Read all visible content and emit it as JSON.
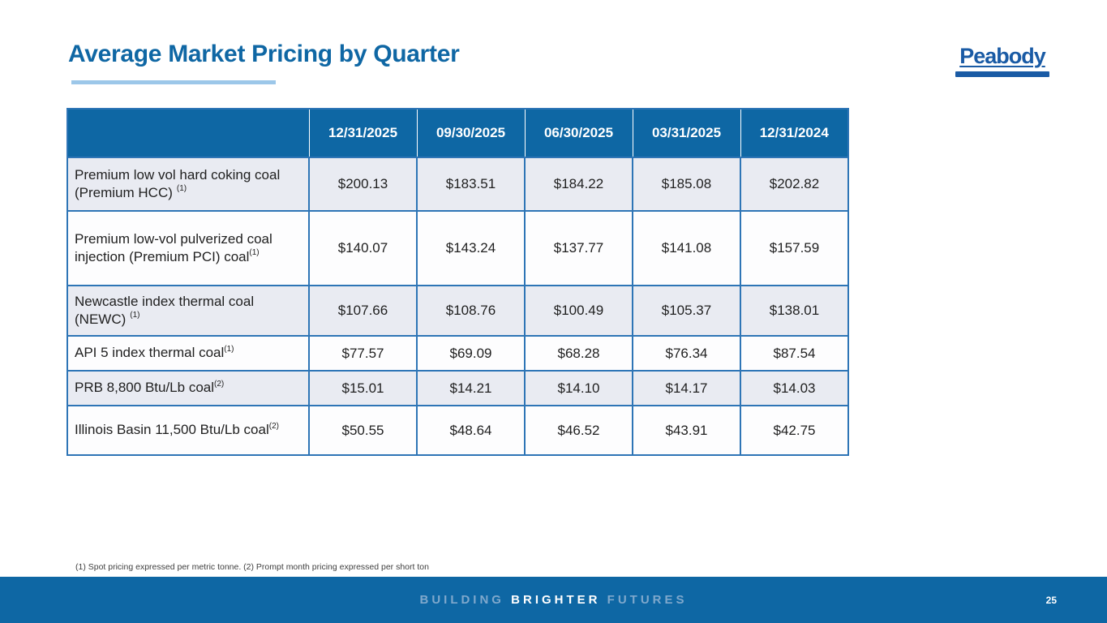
{
  "slide": {
    "title": "Average Market Pricing by Quarter",
    "logo_text": "Peabody",
    "footnote": "(1) Spot pricing expressed per metric tonne. (2) Prompt month pricing expressed per short ton",
    "footer": {
      "word_building": "BUILDING ",
      "word_brighter": "BRIGHTER",
      "word_futures": " FUTURES",
      "page_number": "25"
    }
  },
  "colors": {
    "brand_blue": "#0E67A4",
    "table_border_blue": "#2E75B6",
    "row_stripe": "#E9EBF2",
    "title_underline": "#9CC7E9",
    "logo_blue": "#1A5BA5",
    "footer_muted_text": "#7FA8CC"
  },
  "table": {
    "column_headers": [
      "",
      "12/31/2025",
      "09/30/2025",
      "06/30/2025",
      "03/31/2025",
      "12/31/2024"
    ],
    "rows": [
      {
        "label": "Premium low vol hard coking coal (Premium HCC)",
        "footnote_ref": "(1)",
        "sup_gap": true,
        "values": [
          "$200.13",
          "$183.51",
          "$184.22",
          "$185.08",
          "$202.82"
        ]
      },
      {
        "label": "Premium low-vol pulverized coal injection (Premium PCI) coal",
        "footnote_ref": "(1)",
        "sup_gap": false,
        "values": [
          "$140.07",
          "$143.24",
          "$137.77",
          "$141.08",
          "$157.59"
        ]
      },
      {
        "label": "Newcastle index thermal coal (NEWC)",
        "footnote_ref": "(1)",
        "sup_gap": true,
        "values": [
          "$107.66",
          "$108.76",
          "$100.49",
          "$105.37",
          "$138.01"
        ]
      },
      {
        "label": "API 5 index thermal coal",
        "footnote_ref": "(1)",
        "sup_gap": false,
        "values": [
          "$77.57",
          "$69.09",
          "$68.28",
          "$76.34",
          "$87.54"
        ]
      },
      {
        "label": "PRB 8,800 Btu/Lb coal",
        "footnote_ref": "(2)",
        "sup_gap": false,
        "values": [
          "$15.01",
          "$14.21",
          "$14.10",
          "$14.17",
          "$14.03"
        ]
      },
      {
        "label": "Illinois Basin 11,500 Btu/Lb coal",
        "footnote_ref": "(2)",
        "sup_gap": false,
        "values": [
          "$50.55",
          "$48.64",
          "$46.52",
          "$43.91",
          "$42.75"
        ]
      }
    ]
  }
}
